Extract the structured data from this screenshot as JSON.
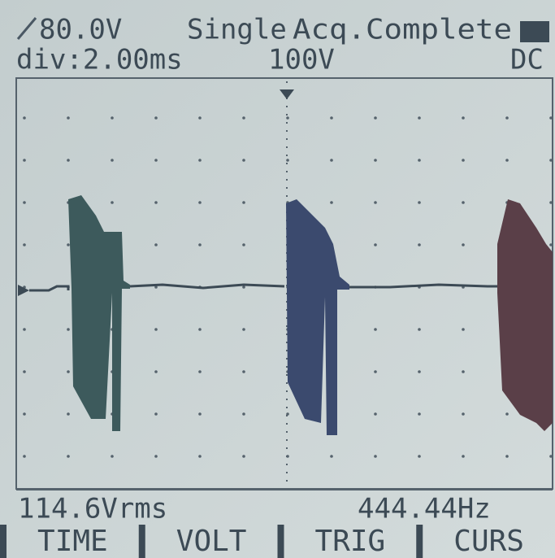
{
  "header": {
    "trigger_level": "80.0V",
    "mode": "Single",
    "status": "Acq.Complete",
    "timebase": "div:2.00ms",
    "volts_per_div": "100V",
    "coupling": "DC"
  },
  "footer": {
    "rms": "114.6Vrms",
    "frequency": "444.44Hz"
  },
  "menu": [
    "TIME",
    "VOLT",
    "TRIG",
    "CURS"
  ]
}
